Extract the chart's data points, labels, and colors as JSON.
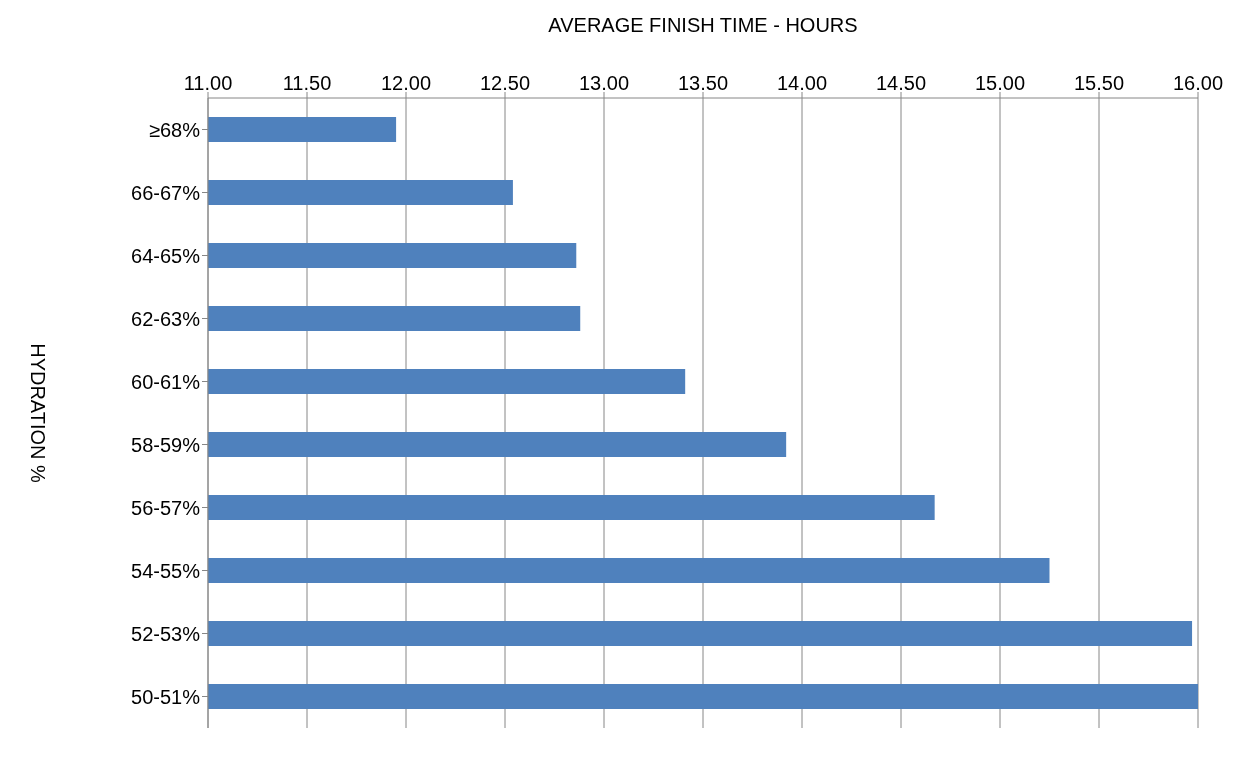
{
  "chart_data": {
    "type": "bar",
    "orientation": "horizontal",
    "title": "AVERAGE FINISH TIME - HOURS",
    "ylabel": "HYDRATION %",
    "categories": [
      "≥68%",
      "66-67%",
      "64-65%",
      "62-63%",
      "60-61%",
      "58-59%",
      "56-57%",
      "54-55%",
      "52-53%",
      "50-51%"
    ],
    "values": [
      11.95,
      12.54,
      12.86,
      12.88,
      13.41,
      13.92,
      14.67,
      15.25,
      15.97,
      16.0
    ],
    "color": "#4f81bd",
    "xlim": [
      11,
      16
    ],
    "xticks": [
      {
        "value": 11,
        "label": "11.00"
      },
      {
        "value": 11.5,
        "label": "11.50"
      },
      {
        "value": 12,
        "label": "12.00"
      },
      {
        "value": 12.5,
        "label": "12.50"
      },
      {
        "value": 13,
        "label": "13.00"
      },
      {
        "value": 13.5,
        "label": "13.50"
      },
      {
        "value": 14,
        "label": "14.00"
      },
      {
        "value": 14.5,
        "label": "14.50"
      },
      {
        "value": 15,
        "label": "15.00"
      },
      {
        "value": 15.5,
        "label": "15.50"
      },
      {
        "value": 16,
        "label": "16.00"
      }
    ],
    "grid": "x",
    "legend": false
  }
}
